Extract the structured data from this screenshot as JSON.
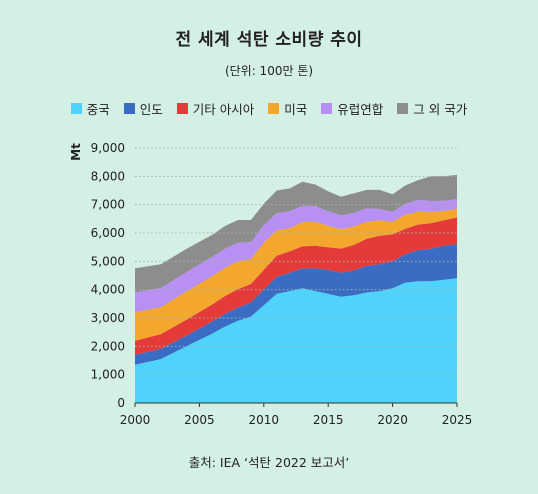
{
  "chart_data": {
    "type": "area",
    "title": "전 세계 석탄 소비량 추이",
    "subtitle": "(단위: 100만 톤)",
    "ylabel": "Mt",
    "xlabel": "",
    "ylim": [
      0,
      9000
    ],
    "xlim": [
      2000,
      2025
    ],
    "y_ticks": [
      "0",
      "1,000",
      "2,000",
      "3,000",
      "4,000",
      "5,000",
      "6,000",
      "7,000",
      "8,000",
      "9,000"
    ],
    "x_ticks": [
      "2000",
      "2005",
      "2010",
      "2015",
      "2020",
      "2025"
    ],
    "grid": "horizontal dotted",
    "legend_position": "top",
    "stacked": true,
    "x": [
      2000,
      2002,
      2004,
      2006,
      2007,
      2008,
      2009,
      2010,
      2011,
      2012,
      2013,
      2014,
      2015,
      2016,
      2017,
      2018,
      2019,
      2020,
      2021,
      2022,
      2023,
      2024,
      2025
    ],
    "series": [
      {
        "name": "중국",
        "color": "#4fd3fb",
        "values": [
          1350,
          1550,
          2000,
          2450,
          2700,
          2900,
          3050,
          3450,
          3850,
          3950,
          4050,
          3950,
          3850,
          3750,
          3800,
          3900,
          3950,
          4050,
          4250,
          4300,
          4300,
          4350,
          4400
        ]
      },
      {
        "name": "인도",
        "color": "#3b6cc4",
        "values": [
          350,
          360,
          380,
          430,
          450,
          470,
          500,
          550,
          600,
          650,
          700,
          800,
          850,
          850,
          880,
          950,
          950,
          950,
          1000,
          1100,
          1150,
          1200,
          1200
        ]
      },
      {
        "name": "기타 아시아",
        "color": "#e43a3a",
        "values": [
          500,
          520,
          560,
          600,
          630,
          650,
          650,
          700,
          750,
          750,
          780,
          800,
          800,
          850,
          900,
          950,
          1000,
          950,
          900,
          900,
          900,
          900,
          950
        ]
      },
      {
        "name": "미국",
        "color": "#f3a72d",
        "values": [
          1000,
          950,
          1000,
          1000,
          1000,
          980,
          880,
          950,
          900,
          820,
          850,
          850,
          750,
          680,
          650,
          600,
          550,
          450,
          500,
          450,
          400,
          330,
          300
        ]
      },
      {
        "name": "유럽연합",
        "color": "#b88ff2",
        "values": [
          700,
          680,
          680,
          680,
          670,
          660,
          600,
          620,
          600,
          600,
          580,
          550,
          520,
          500,
          480,
          470,
          400,
          350,
          380,
          420,
          380,
          360,
          350
        ]
      },
      {
        "name": "그 외 국가",
        "color": "#8d8d8d",
        "values": [
          850,
          840,
          820,
          780,
          800,
          800,
          780,
          760,
          800,
          800,
          850,
          760,
          700,
          650,
          690,
          650,
          670,
          620,
          650,
          700,
          870,
          860,
          850
        ]
      }
    ]
  },
  "source": "출처: IEA ‘석탄 2022 보고서’"
}
